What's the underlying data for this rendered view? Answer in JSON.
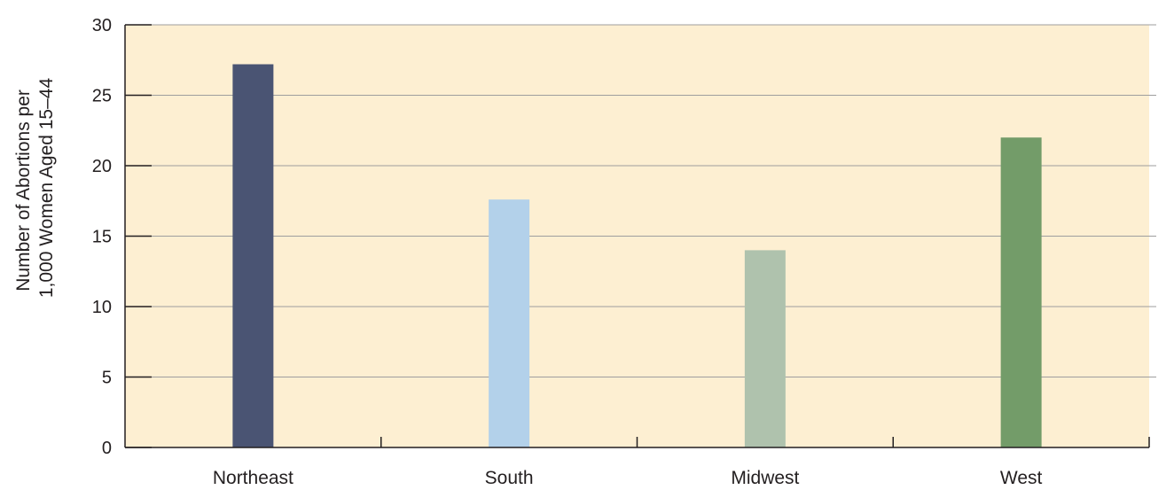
{
  "chart_data": {
    "type": "bar",
    "categories": [
      "Northeast",
      "South",
      "Midwest",
      "West"
    ],
    "values": [
      27.2,
      17.6,
      14.0,
      22.0
    ],
    "colors": [
      "#4a5473",
      "#b3d1ea",
      "#afc2ad",
      "#739c69"
    ],
    "ylabel_lines": [
      "Number of Abortions per",
      "1,000 Women Aged 15–44"
    ],
    "xlabel": "",
    "ylim": [
      0,
      30
    ],
    "yticks": [
      0,
      5,
      10,
      15,
      20,
      25,
      30
    ],
    "grid": true,
    "plot_background": "#fdefd2",
    "grid_color": "#9e9e9e"
  }
}
